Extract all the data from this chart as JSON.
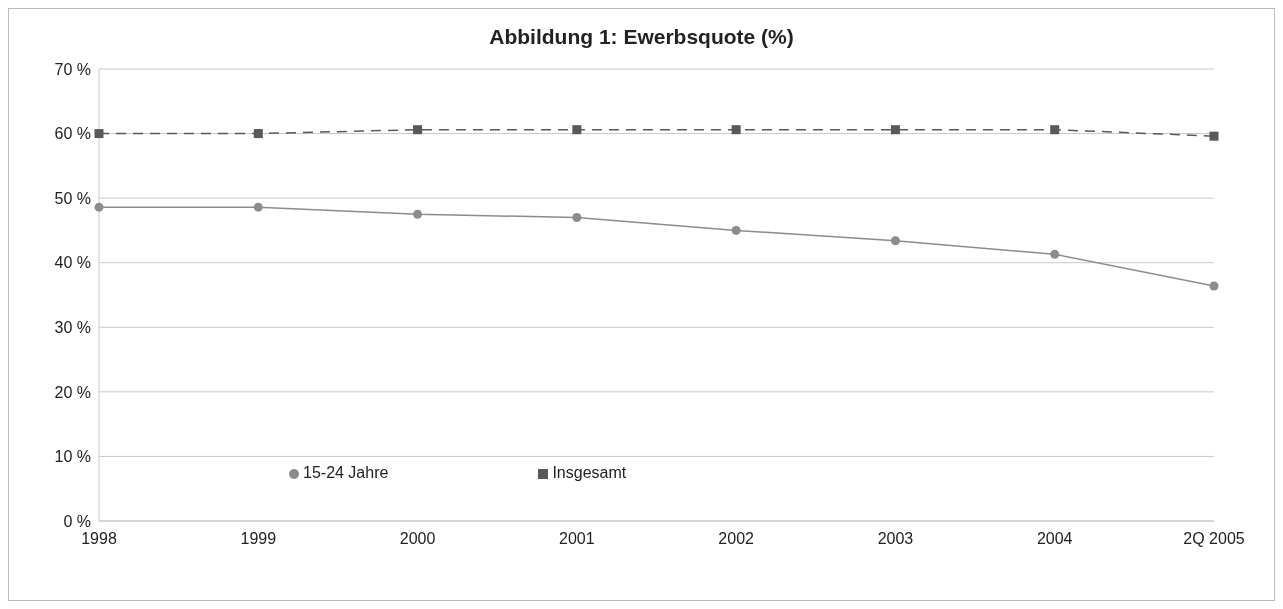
{
  "chart_data": {
    "type": "line",
    "title": "Abbildung 1: Ewerbsquote (%)",
    "categories": [
      "1998",
      "1999",
      "2000",
      "2001",
      "2002",
      "2003",
      "2004",
      "2Q 2005"
    ],
    "series": [
      {
        "name": "Insgesamt",
        "color": "#595959",
        "values": [
          60.0,
          60.0,
          60.6,
          60.6,
          60.6,
          60.6,
          60.6,
          59.6
        ],
        "marker": "square",
        "line_style": "dashed"
      },
      {
        "name": "15-24 Jahre",
        "color": "#8c8c8c",
        "values": [
          48.6,
          48.6,
          47.5,
          47.0,
          45.0,
          43.4,
          41.3,
          36.4
        ],
        "marker": "circle",
        "line_style": "solid"
      }
    ],
    "ylim": [
      0,
      70
    ],
    "yticks": [
      {
        "value": 0,
        "label": "0 %"
      },
      {
        "value": 10,
        "label": "10 %"
      },
      {
        "value": 20,
        "label": "20 %"
      },
      {
        "value": 30,
        "label": "30 %"
      },
      {
        "value": 40,
        "label": "40 %"
      },
      {
        "value": 50,
        "label": "50 %"
      },
      {
        "value": 60,
        "label": "60 %"
      },
      {
        "value": 70,
        "label": "70 %"
      }
    ],
    "grid": "y",
    "legend": "bottom"
  }
}
